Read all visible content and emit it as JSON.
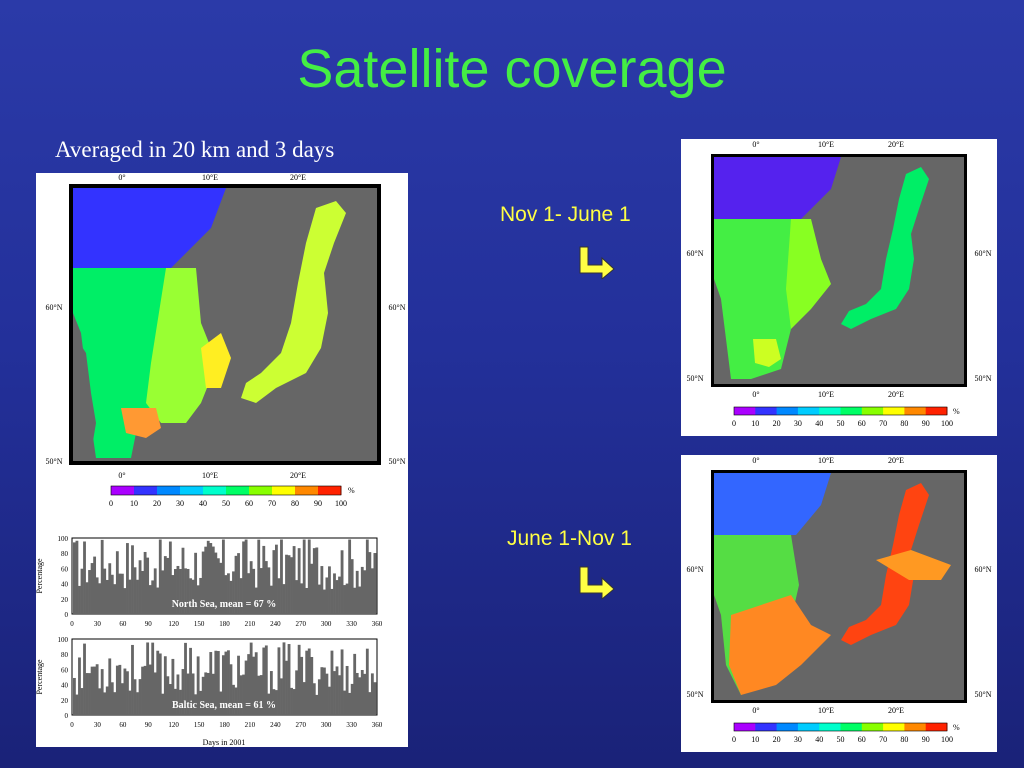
{
  "slide": {
    "title": "Satellite coverage",
    "subtitle": "Averaged in 20 km and 3 days",
    "period1": "Nov 1- June 1",
    "period2": "June 1-Nov 1",
    "arrow_icon": "down-right-arrow-icon"
  },
  "map": {
    "lon_ticks": [
      "0°",
      "10°E",
      "20°E"
    ],
    "lat_ticks": [
      "60°N",
      "50°N"
    ],
    "colorbar_ticks": [
      "0",
      "10",
      "20",
      "30",
      "40",
      "50",
      "60",
      "70",
      "80",
      "90",
      "100"
    ],
    "colorbar_unit": "%",
    "colorbar_colors": [
      "#ff00ff",
      "#aa00ff",
      "#3333ff",
      "#0088ff",
      "#00ccff",
      "#00ffcc",
      "#00ff66",
      "#88ff00",
      "#ffff00",
      "#ff8800",
      "#ff2200"
    ],
    "land_color": "#666666"
  },
  "timeseries": {
    "x_ticks": [
      "0",
      "30",
      "60",
      "90",
      "120",
      "150",
      "180",
      "210",
      "240",
      "270",
      "300",
      "330",
      "360"
    ],
    "y_ticks": [
      "100",
      "80",
      "60",
      "40",
      "20",
      "0"
    ],
    "ylabel": "Percentage",
    "xlabel": "Days in 2001",
    "north_label": "North Sea,  mean = 67 %",
    "baltic_label": "Baltic Sea,  mean = 61 %"
  }
}
